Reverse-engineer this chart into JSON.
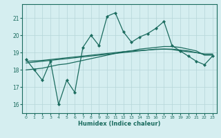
{
  "xlabel": "Humidex (Indice chaleur)",
  "x": [
    0,
    1,
    2,
    3,
    4,
    5,
    6,
    7,
    8,
    9,
    10,
    11,
    12,
    13,
    14,
    15,
    16,
    17,
    18,
    19,
    20,
    21,
    22,
    23
  ],
  "line1": [
    18.6,
    18.0,
    17.4,
    18.5,
    16.0,
    17.4,
    16.7,
    19.3,
    20.0,
    19.4,
    21.1,
    21.3,
    20.2,
    19.6,
    19.9,
    20.1,
    20.4,
    20.8,
    19.4,
    19.1,
    18.8,
    18.5,
    18.3,
    18.8
  ],
  "line2": [
    18.0,
    18.05,
    18.1,
    18.2,
    18.3,
    18.35,
    18.45,
    18.55,
    18.65,
    18.75,
    18.85,
    18.95,
    19.05,
    19.1,
    19.2,
    19.25,
    19.3,
    19.35,
    19.35,
    19.3,
    19.2,
    19.1,
    18.85,
    18.85
  ],
  "line3": [
    18.4,
    18.45,
    18.5,
    18.55,
    18.6,
    18.65,
    18.7,
    18.75,
    18.8,
    18.85,
    18.9,
    18.95,
    19.0,
    19.05,
    19.1,
    19.15,
    19.2,
    19.2,
    19.2,
    19.15,
    19.1,
    19.0,
    18.9,
    18.9
  ],
  "line4": [
    18.5,
    18.52,
    18.55,
    18.6,
    18.65,
    18.7,
    18.75,
    18.8,
    18.85,
    18.9,
    18.95,
    19.0,
    19.05,
    19.1,
    19.12,
    19.15,
    19.18,
    19.2,
    19.18,
    19.1,
    19.05,
    19.0,
    18.92,
    18.92
  ],
  "color": "#1a6b5e",
  "bg_color": "#d5eef0",
  "grid_color": "#b5d5d8",
  "ylim": [
    15.5,
    21.8
  ],
  "xlim": [
    -0.5,
    23.5
  ],
  "yticks": [
    16,
    17,
    18,
    19,
    20,
    21
  ],
  "xticks": [
    0,
    1,
    2,
    3,
    4,
    5,
    6,
    7,
    8,
    9,
    10,
    11,
    12,
    13,
    14,
    15,
    16,
    17,
    18,
    19,
    20,
    21,
    22,
    23
  ]
}
